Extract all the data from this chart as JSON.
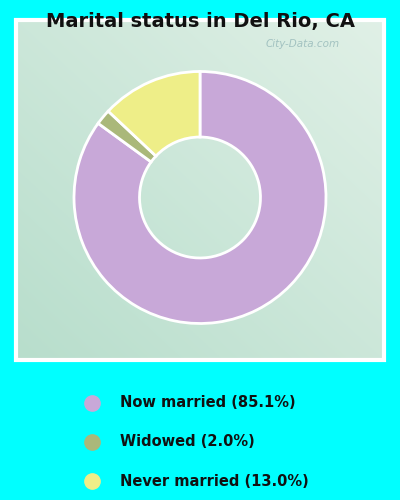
{
  "title": "Marital status in Del Rio, CA",
  "title_fontsize": 14,
  "bg_outer": "#00FFFF",
  "slices": [
    85.1,
    2.0,
    13.0
  ],
  "labels": [
    "Now married (85.1%)",
    "Widowed (2.0%)",
    "Never married (13.0%)"
  ],
  "colors": [
    "#c8a8d8",
    "#aab87a",
    "#eeee88"
  ],
  "start_angle": 90,
  "legend_dot_colors": [
    "#c8a8d8",
    "#aab87a",
    "#eeee88"
  ],
  "watermark": "City-Data.com",
  "chart_bg_tl": "#e8f5ee",
  "chart_bg_br": "#c8e8d8",
  "donut_width": 0.52
}
